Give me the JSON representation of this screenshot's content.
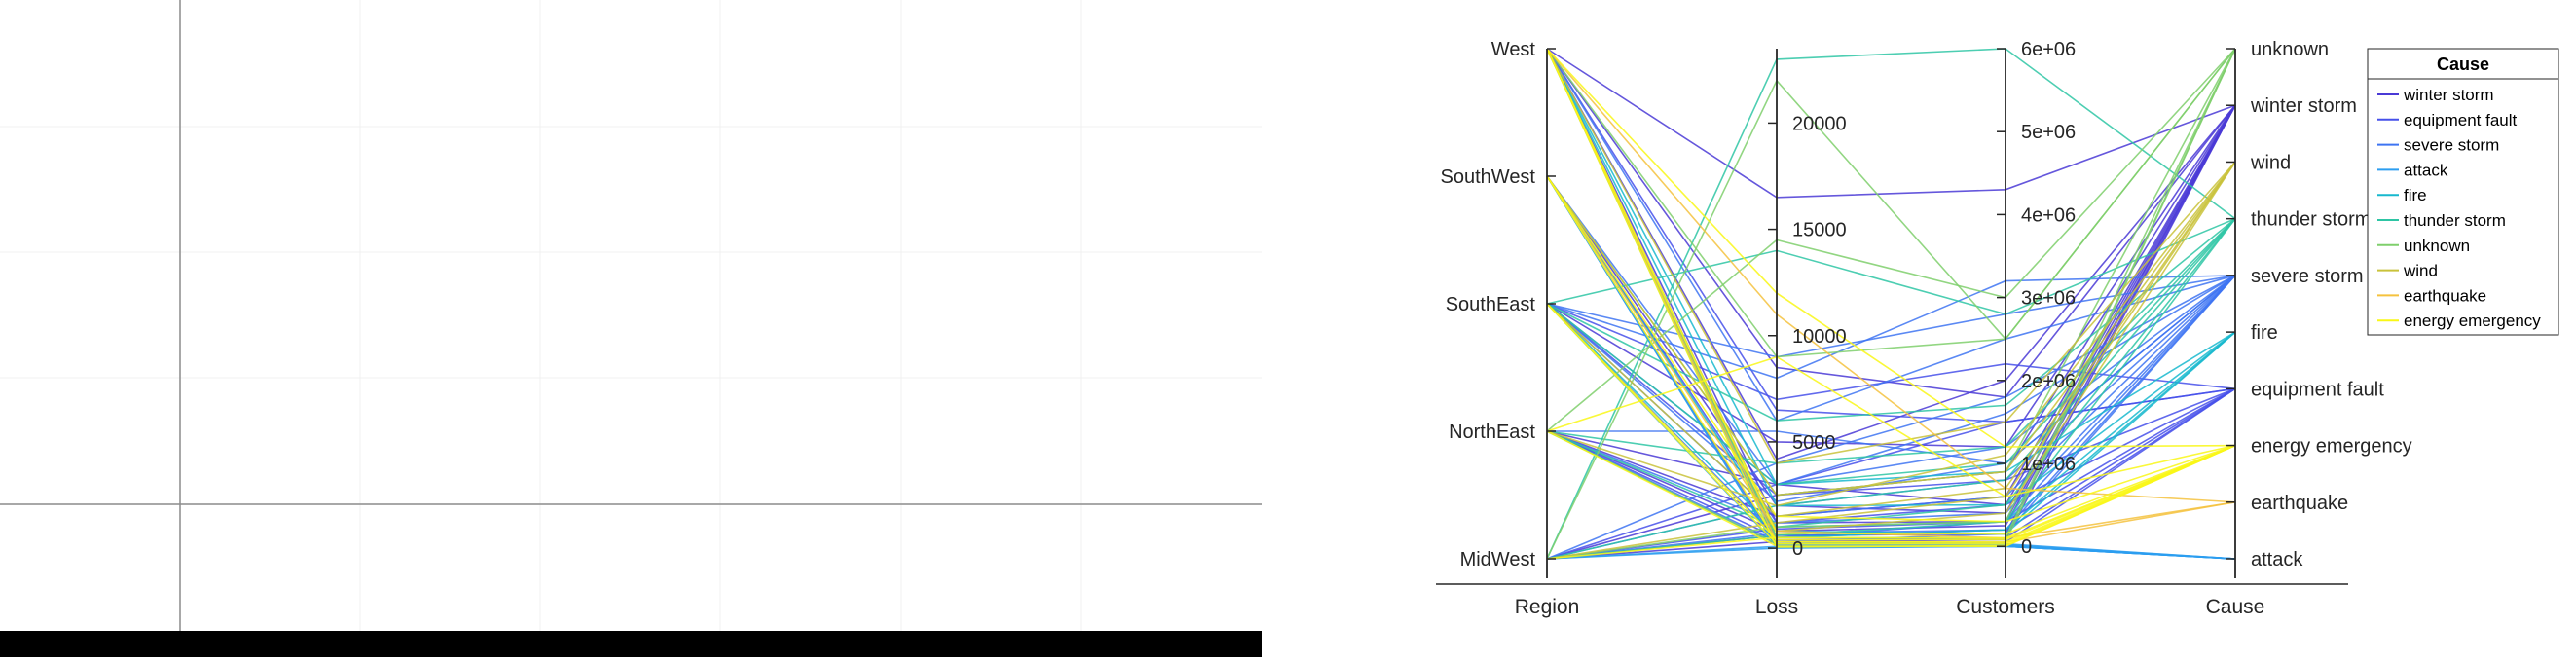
{
  "colors": {
    "background": "#ffffff",
    "bottom_bar": "#000000",
    "grid": "#f0f0f0",
    "crosshair": "#8c8c8c",
    "axis": "#262626"
  },
  "chart_data": {
    "type": "parallel-coordinates",
    "axes": [
      {
        "name": "Region",
        "kind": "categorical",
        "categories": [
          "MidWest",
          "NorthEast",
          "SouthEast",
          "SouthWest",
          "West"
        ]
      },
      {
        "name": "Loss",
        "kind": "numeric",
        "range": [
          -500,
          23500
        ],
        "ticks": [
          0,
          5000,
          10000,
          15000,
          20000
        ],
        "tick_labels": [
          "0",
          "5000",
          "10000",
          "15000",
          "20000"
        ]
      },
      {
        "name": "Customers",
        "kind": "numeric",
        "range": [
          -150000,
          6000000
        ],
        "ticks": [
          0,
          1000000,
          2000000,
          3000000,
          4000000,
          5000000,
          6000000
        ],
        "tick_labels": [
          "0",
          "1e+06",
          "2e+06",
          "3e+06",
          "4e+06",
          "5e+06",
          "6e+06"
        ]
      },
      {
        "name": "Cause",
        "kind": "categorical",
        "categories": [
          "attack",
          "earthquake",
          "energy emergency",
          "equipment fault",
          "fire",
          "severe storm",
          "thunder storm",
          "wind",
          "winter storm",
          "unknown"
        ]
      }
    ],
    "legend": {
      "title": "Cause",
      "placement": "top-right",
      "entries": [
        {
          "label": "winter storm",
          "color": "#4a3ad6"
        },
        {
          "label": "equipment fault",
          "color": "#4650ea"
        },
        {
          "label": "severe storm",
          "color": "#3e74f2"
        },
        {
          "label": "attack",
          "color": "#2c9ef0"
        },
        {
          "label": "fire",
          "color": "#17b8ce"
        },
        {
          "label": "thunder storm",
          "color": "#2ec5a4"
        },
        {
          "label": "unknown",
          "color": "#7fcf6c"
        },
        {
          "label": "wind",
          "color": "#c9c23b"
        },
        {
          "label": "earthquake",
          "color": "#f5c23e"
        },
        {
          "label": "energy emergency",
          "color": "#f9f716"
        }
      ]
    },
    "groups": [
      {
        "cause": "winter storm",
        "color": "#4a3ad6",
        "lines": [
          [
            "West",
            16500,
            4300000
          ],
          [
            "West",
            8500,
            1800000
          ],
          [
            "MidWest",
            2500,
            900000
          ],
          [
            "NorthEast",
            3000,
            500000
          ],
          [
            "SouthEast",
            5000,
            1200000
          ],
          [
            "West",
            1200,
            300000
          ],
          [
            "MidWest",
            600,
            150000
          ],
          [
            "NorthEast",
            1500,
            600000
          ],
          [
            "SouthWest",
            2000,
            400000
          ],
          [
            "West",
            4200,
            2000000
          ],
          [
            "MidWest",
            300,
            80000
          ],
          [
            "NorthEast",
            800,
            250000
          ]
        ]
      },
      {
        "cause": "equipment fault",
        "color": "#4650ea",
        "lines": [
          [
            "SouthEast",
            7000,
            2200000
          ],
          [
            "West",
            6500,
            1500000
          ],
          [
            "MidWest",
            900,
            300000
          ],
          [
            "SouthWest",
            1200,
            500000
          ],
          [
            "NorthEast",
            500,
            200000
          ],
          [
            "SouthEast",
            2500,
            800000
          ],
          [
            "West",
            400,
            100000
          ],
          [
            "MidWest",
            3000,
            1500000
          ],
          [
            "SouthWest",
            200,
            50000
          ]
        ]
      },
      {
        "cause": "severe storm",
        "color": "#3e74f2",
        "lines": [
          [
            "SouthEast",
            8000,
            3200000
          ],
          [
            "West",
            6000,
            2500000
          ],
          [
            "MidWest",
            4000,
            1800000
          ],
          [
            "SouthEast",
            3000,
            1200000
          ],
          [
            "NorthEast",
            5500,
            1000000
          ],
          [
            "SouthEast",
            1500,
            600000
          ],
          [
            "MidWest",
            2000,
            800000
          ],
          [
            "SouthEast",
            500,
            300000
          ],
          [
            "NorthEast",
            1200,
            400000
          ],
          [
            "SouthWest",
            3000,
            1600000
          ],
          [
            "SouthEast",
            9000,
            2800000
          ],
          [
            "MidWest",
            700,
            200000
          ],
          [
            "SouthEast",
            2200,
            1000000
          ],
          [
            "NorthEast",
            300,
            150000
          ]
        ]
      },
      {
        "cause": "attack",
        "color": "#2c9ef0",
        "lines": [
          [
            "West",
            100,
            10000
          ],
          [
            "SouthWest",
            50,
            0
          ],
          [
            "MidWest",
            0,
            0
          ],
          [
            "NorthEast",
            200,
            20000
          ],
          [
            "SouthEast",
            150,
            5000
          ],
          [
            "West",
            300,
            30000
          ],
          [
            "MidWest",
            80,
            0
          ],
          [
            "SouthWest",
            20,
            0
          ]
        ]
      },
      {
        "cause": "fire",
        "color": "#17b8ce",
        "lines": [
          [
            "West",
            2000,
            500000
          ],
          [
            "SouthWest",
            1000,
            300000
          ],
          [
            "West",
            500,
            200000
          ],
          [
            "SouthEast",
            800,
            150000
          ],
          [
            "West",
            3000,
            900000
          ]
        ]
      },
      {
        "cause": "thunder storm",
        "color": "#2ec5a4",
        "lines": [
          [
            "MidWest",
            23000,
            6000000
          ],
          [
            "SouthEast",
            14000,
            2800000
          ],
          [
            "NorthEast",
            4000,
            1200000
          ],
          [
            "MidWest",
            2000,
            800000
          ],
          [
            "SouthEast",
            6000,
            1700000
          ],
          [
            "NorthEast",
            1000,
            500000
          ],
          [
            "MidWest",
            600,
            300000
          ],
          [
            "SouthEast",
            3000,
            1000000
          ]
        ]
      },
      {
        "cause": "unknown",
        "color": "#7fcf6c",
        "lines": [
          [
            "MidWest",
            22000,
            2500000
          ],
          [
            "NorthEast",
            14500,
            3000000
          ],
          [
            "West",
            9000,
            2500000
          ],
          [
            "MidWest",
            1000,
            300000
          ],
          [
            "NorthEast",
            200,
            50000
          ],
          [
            "SouthWest",
            2500,
            900000
          ],
          [
            "West",
            500,
            100000
          ]
        ]
      },
      {
        "cause": "wind",
        "color": "#c9c23b",
        "lines": [
          [
            "West",
            4000,
            1500000
          ],
          [
            "SouthWest",
            2500,
            900000
          ],
          [
            "SouthEast",
            1500,
            700000
          ],
          [
            "West",
            800,
            400000
          ],
          [
            "NorthEast",
            2000,
            1100000
          ],
          [
            "MidWest",
            1200,
            600000
          ]
        ]
      },
      {
        "cause": "earthquake",
        "color": "#f5c23e",
        "lines": [
          [
            "West",
            11000,
            700000
          ],
          [
            "SouthWest",
            800,
            100000
          ],
          [
            "West",
            300,
            50000
          ]
        ]
      },
      {
        "cause": "energy emergency",
        "color": "#f9f716",
        "lines": [
          [
            "West",
            12000,
            1200000
          ],
          [
            "NorthEast",
            9000,
            600000
          ],
          [
            "SouthWest",
            300,
            50000
          ],
          [
            "SouthEast",
            200,
            30000
          ],
          [
            "MidWest",
            500,
            100000
          ],
          [
            "West",
            50,
            10000
          ],
          [
            "NorthEast",
            100,
            0
          ],
          [
            "West",
            700,
            150000
          ],
          [
            "SouthWest",
            1500,
            300000
          ],
          [
            "SouthEast",
            400,
            80000
          ]
        ]
      }
    ],
    "title": "",
    "grid": false
  }
}
